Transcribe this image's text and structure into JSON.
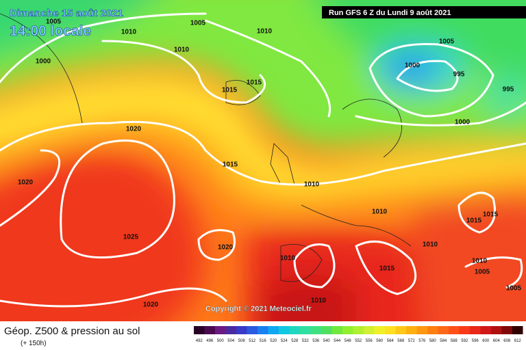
{
  "header": {
    "date": "Dimanche 15 août 2021",
    "time": "14:00 locale",
    "run": "Run GFS 6 Z du Lundi 9 août 2021"
  },
  "isobar_labels": [
    "1005",
    "1010",
    "1005",
    "1010",
    "1010",
    "1000",
    "1015",
    "1015",
    "1005",
    "1000",
    "995",
    "995",
    "1000",
    "1020",
    "1015",
    "1010",
    "1020",
    "1010",
    "1015",
    "1015",
    "1010",
    "1025",
    "1020",
    "1010",
    "1015",
    "1010",
    "1005",
    "1005",
    "1010",
    "1020"
  ],
  "copyright": "Copyright © 2021 Meteociel.fr",
  "legend": {
    "title": "Géop. Z500 & pression au sol",
    "subtitle": "(+ 150h)",
    "values": [
      492,
      496,
      500,
      504,
      508,
      512,
      516,
      520,
      524,
      528,
      532,
      536,
      540,
      544,
      548,
      552,
      556,
      560,
      564,
      568,
      572,
      576,
      580,
      584,
      588,
      592,
      596,
      600,
      604,
      608,
      612
    ]
  }
}
